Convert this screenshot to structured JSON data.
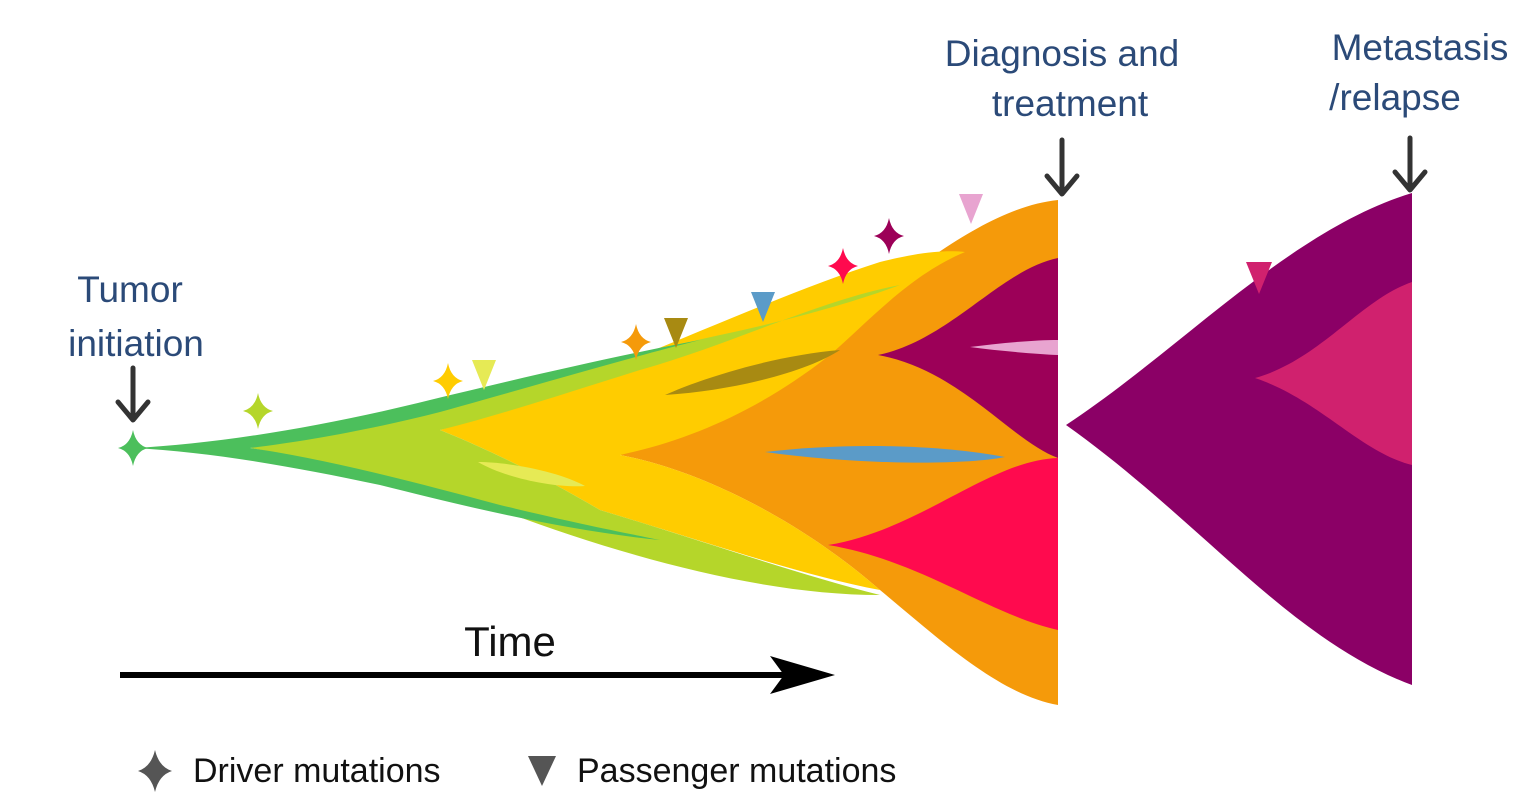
{
  "labels": {
    "tumor_initiation_line1": "Tumor",
    "tumor_initiation_line2": "initiation",
    "diagnosis_line1": "Diagnosis and",
    "diagnosis_line2": "treatment",
    "metastasis_line1": "Metastasis",
    "metastasis_line2": "/relapse",
    "time": "Time"
  },
  "legend": {
    "driver": "Driver mutations",
    "passenger": "Passenger mutations"
  },
  "colors": {
    "label_blue": "#2b4a78",
    "clone_green": "#4cbf5c",
    "clone_lime": "#b5d62a",
    "clone_yellow": "#ffcc00",
    "clone_orange": "#f59a0a",
    "clone_brown": "#a88a12",
    "clone_steelblue": "#5b9bc8",
    "clone_red": "#ff0a4e",
    "clone_plum": "#9c0058",
    "clone_pink_light": "#e8a4d0",
    "relapse_purple": "#8b0066",
    "relapse_magenta": "#d0216e",
    "marker_gray": "#555555"
  },
  "icons": {
    "driver": "four-point-star",
    "passenger": "downward-triangle",
    "pointer": "down-arrow"
  }
}
